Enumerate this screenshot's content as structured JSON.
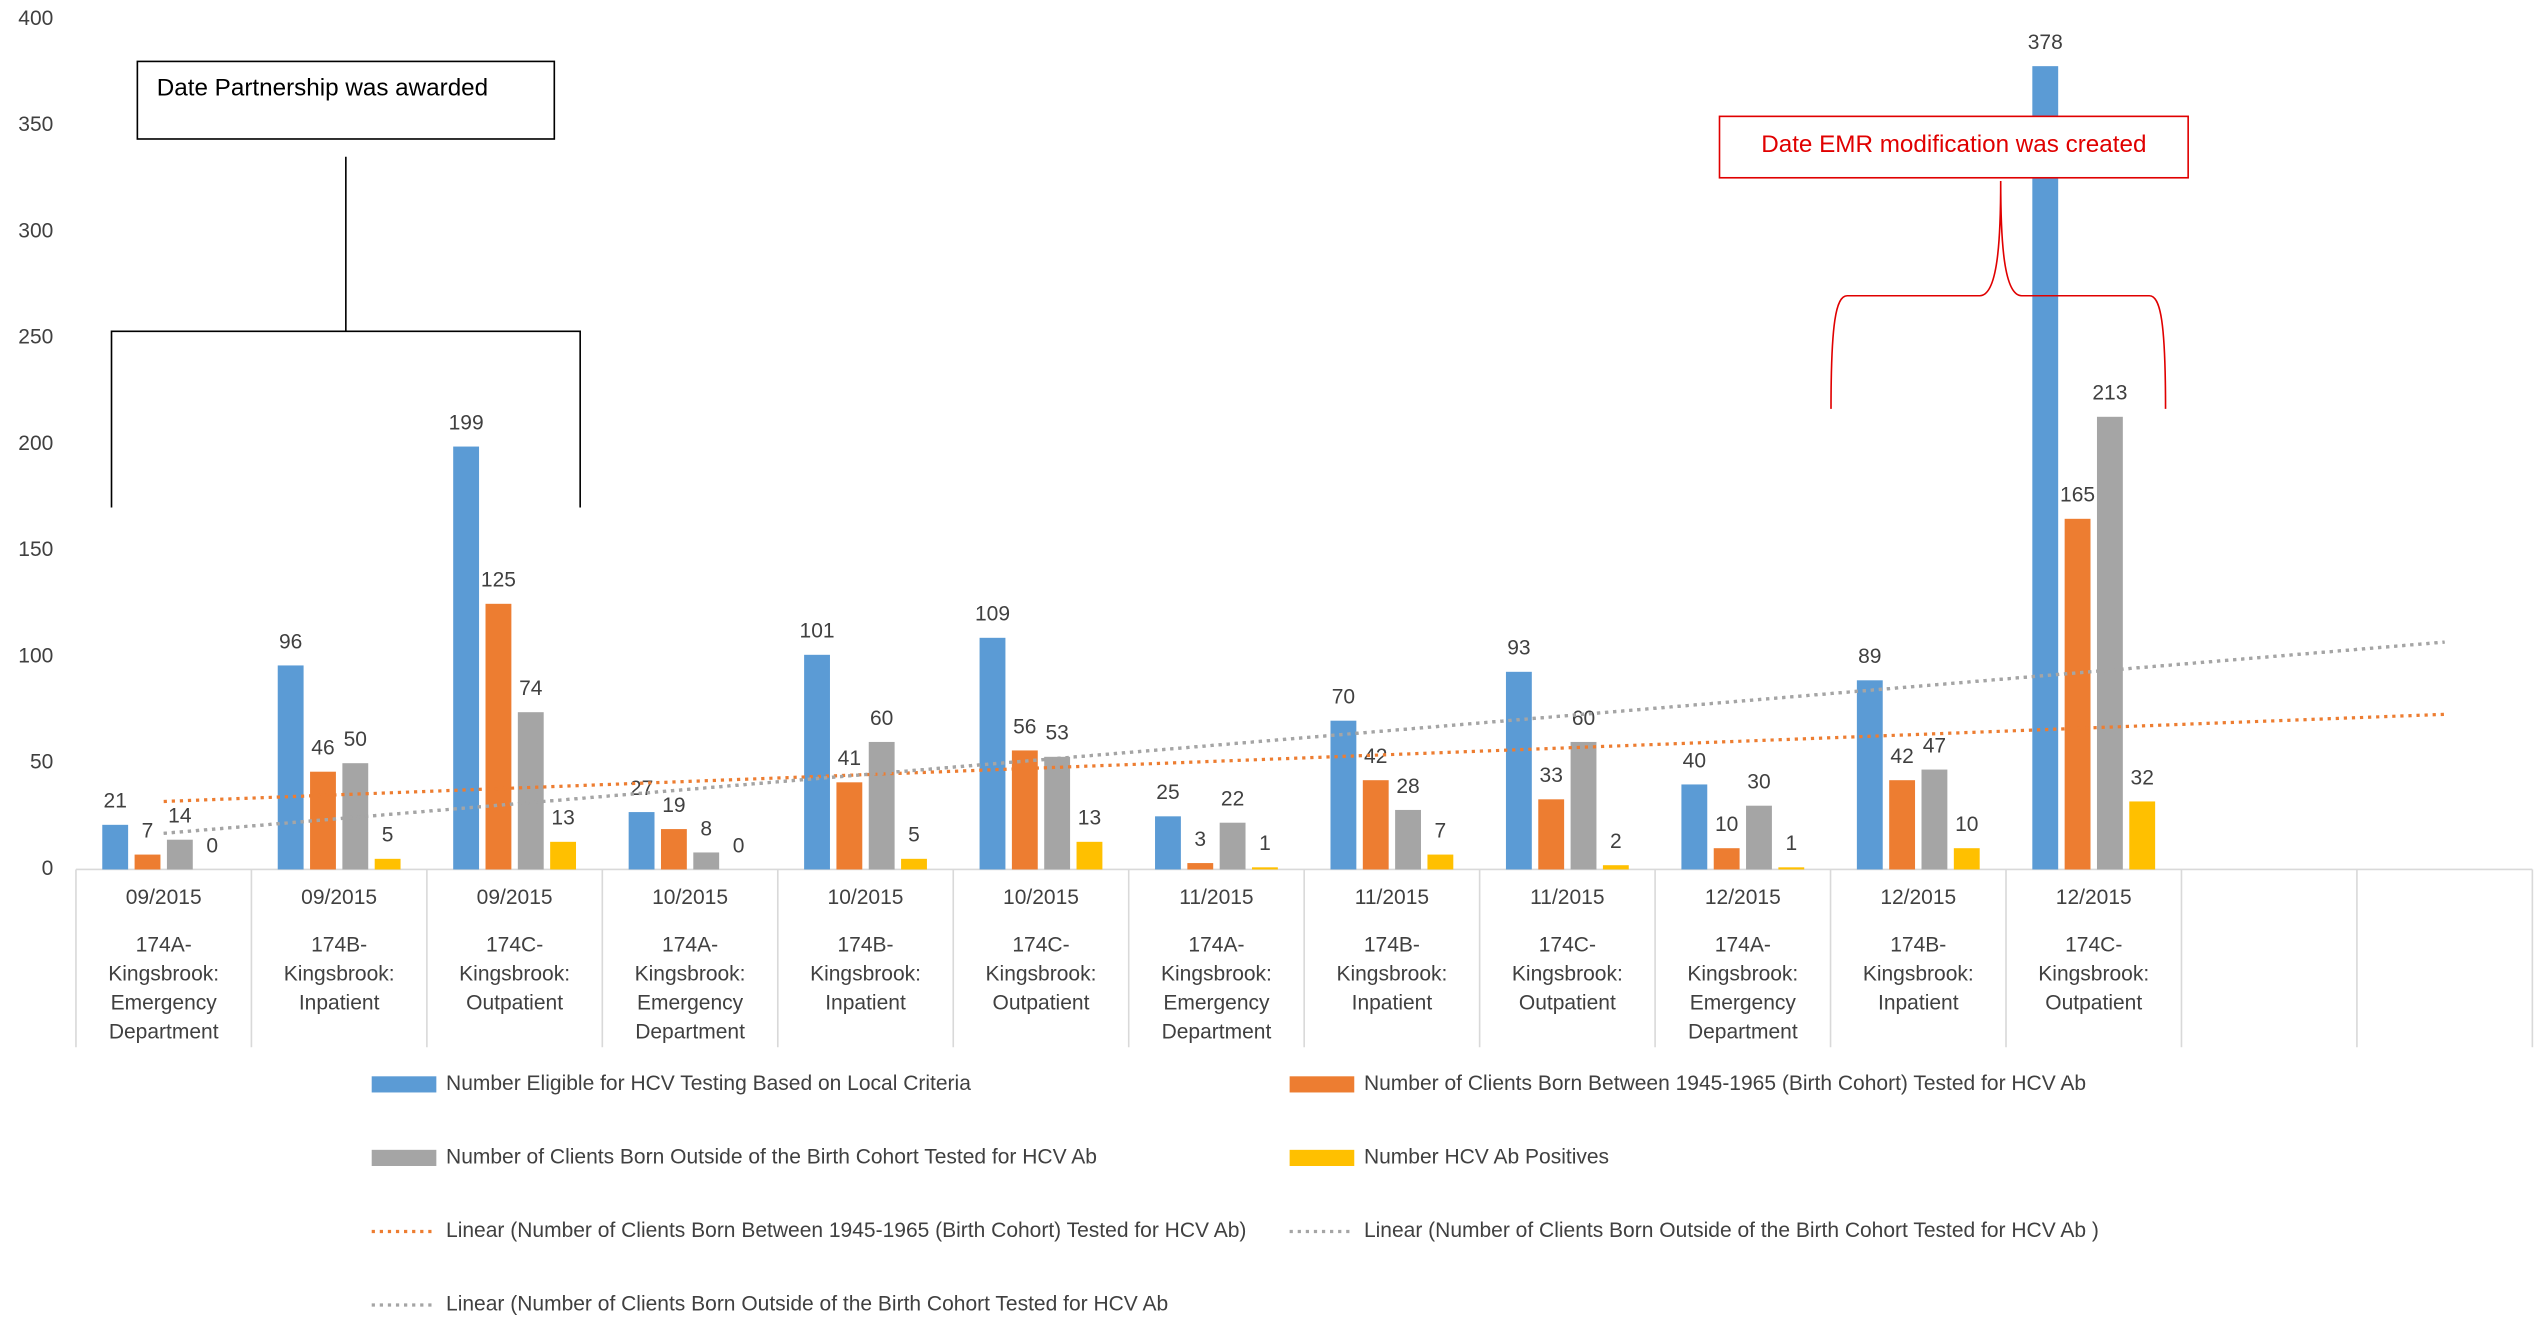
{
  "chart_data": {
    "type": "bar",
    "categories": [
      "09/2015",
      "09/2015",
      "09/2015",
      "10/2015",
      "10/2015",
      "10/2015",
      "11/2015",
      "11/2015",
      "11/2015",
      "12/2015",
      "12/2015",
      "12/2015",
      null,
      null
    ],
    "category_sites": [
      "174A-Kingsbrook: Emergency Department",
      "174B-Kingsbrook: Inpatient",
      "174C-Kingsbrook: Outpatient",
      "174A-Kingsbrook: Emergency Department",
      "174B-Kingsbrook: Inpatient",
      "174C-Kingsbrook: Outpatient",
      "174A-Kingsbrook: Emergency Department",
      "174B-Kingsbrook: Inpatient",
      "174C-Kingsbrook: Outpatient",
      "174A-Kingsbrook: Emergency Department",
      "174B-Kingsbrook: Inpatient",
      "174C-Kingsbrook: Outpatient",
      null,
      null
    ],
    "series": [
      {
        "name": "Number Eligible for HCV Testing  Based on Local Criteria",
        "color": "#5b9bd5",
        "values": [
          21,
          96,
          199,
          27,
          101,
          109,
          25,
          70,
          93,
          40,
          89,
          378,
          null,
          null
        ]
      },
      {
        "name": "Number of Clients Born Between 1945-1965 (Birth Cohort) Tested for HCV Ab",
        "color": "#ed7d31",
        "values": [
          7,
          46,
          125,
          19,
          41,
          56,
          3,
          42,
          33,
          10,
          42,
          165,
          null,
          null
        ]
      },
      {
        "name": "Number of Clients Born Outside of the Birth Cohort Tested for HCV Ab",
        "color": "#a5a5a5",
        "values": [
          14,
          50,
          74,
          8,
          60,
          53,
          22,
          28,
          60,
          30,
          47,
          213,
          null,
          null
        ]
      },
      {
        "name": "Number HCV  Ab Positives",
        "color": "#ffc000",
        "values": [
          0,
          5,
          13,
          0,
          5,
          13,
          1,
          7,
          2,
          1,
          10,
          32,
          null,
          null
        ]
      }
    ],
    "trendlines": [
      {
        "name": "Linear (Number of Clients Born Between 1945-1965 (Birth Cohort) Tested for HCV Ab)",
        "color": "#ed7d31",
        "values": [
          32,
          73
        ]
      },
      {
        "name": "Linear (Number of Clients Born Outside of the Birth Cohort Tested for HCV Ab )",
        "color": "#a5a5a5",
        "values": [
          17,
          107
        ]
      },
      {
        "name": "Linear (Number of Clients Born Outside of the Birth Cohort Tested for HCV Ab",
        "color": "#a5a5a5",
        "values": [
          17,
          107
        ]
      }
    ],
    "ylim": [
      0,
      400
    ],
    "yticks": [
      0,
      50,
      100,
      150,
      200,
      250,
      300,
      350,
      400
    ],
    "grid": false,
    "annotations": [
      "Date Partnership was awarded",
      "Date EMR modification was created"
    ]
  }
}
